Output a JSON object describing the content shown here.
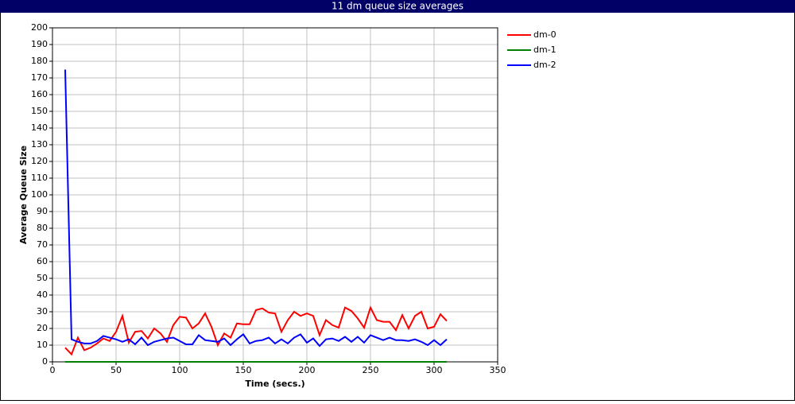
{
  "chart_data": {
    "type": "line",
    "title": "11 dm queue size averages",
    "x_label": "Time (secs.)",
    "y_label": "Average Queue Size",
    "x": [
      10,
      15,
      20,
      25,
      30,
      35,
      40,
      45,
      50,
      55,
      60,
      65,
      70,
      75,
      80,
      85,
      90,
      95,
      100,
      105,
      110,
      115,
      120,
      125,
      130,
      135,
      140,
      145,
      150,
      155,
      160,
      165,
      170,
      175,
      180,
      185,
      190,
      195,
      200,
      205,
      210,
      215,
      220,
      225,
      230,
      235,
      240,
      245,
      250,
      255,
      260,
      265,
      270,
      275,
      280,
      285,
      290,
      295,
      300,
      305,
      310
    ],
    "series": [
      {
        "name": "dm-0",
        "color": "#ff0000",
        "values": [
          8.5,
          4.5,
          14.5,
          7,
          8.5,
          11,
          14,
          12.5,
          18,
          27.5,
          11.5,
          18,
          18.5,
          14,
          20,
          17,
          12,
          22,
          27,
          26.5,
          20,
          23,
          29,
          21,
          10,
          17,
          14.5,
          23,
          22.5,
          22.5,
          31,
          32,
          29.5,
          29,
          18,
          25,
          30,
          27.5,
          29,
          27.5,
          16,
          25,
          22,
          20.5,
          32.5,
          30.5,
          26,
          20.5,
          32.5,
          25,
          24,
          24,
          19,
          28,
          20,
          27.5,
          30,
          20,
          21,
          28.5,
          24.5
        ]
      },
      {
        "name": "dm-1",
        "color": "#008000",
        "values": [
          0,
          0,
          0,
          0,
          0,
          0,
          0,
          0,
          0,
          0,
          0,
          0,
          0,
          0,
          0,
          0,
          0,
          0,
          0,
          0,
          0,
          0,
          0,
          0,
          0,
          0,
          0,
          0,
          0,
          0,
          0,
          0,
          0,
          0,
          0,
          0,
          0,
          0,
          0,
          0,
          0,
          0,
          0,
          0,
          0,
          0,
          0,
          0,
          0,
          0,
          0,
          0,
          0,
          0,
          0,
          0,
          0,
          0,
          0,
          0,
          0
        ]
      },
      {
        "name": "dm-2",
        "color": "#0000ff",
        "values": [
          175,
          13.5,
          12,
          11,
          11,
          12.5,
          15.5,
          14.5,
          13.5,
          12,
          13.5,
          10.5,
          14.5,
          10,
          12,
          13,
          14,
          14.5,
          12.5,
          10.5,
          10.5,
          16,
          13,
          12.5,
          12,
          14,
          10,
          13.5,
          16.5,
          11,
          12.5,
          13,
          14.5,
          11,
          13.5,
          11,
          14.5,
          16.5,
          11.5,
          14,
          9.5,
          13.5,
          14,
          12.5,
          15,
          12,
          15,
          11.5,
          16,
          14.5,
          13,
          14.5,
          13,
          13,
          12.5,
          13.5,
          12,
          10,
          13,
          10,
          13.5
        ]
      }
    ],
    "xlim": [
      0,
      350
    ],
    "xticks": [
      0,
      50,
      100,
      150,
      200,
      250,
      300,
      350
    ],
    "ylim": [
      0,
      200
    ],
    "yticks": [
      0,
      10,
      20,
      30,
      40,
      50,
      60,
      70,
      80,
      90,
      100,
      110,
      120,
      130,
      140,
      150,
      160,
      170,
      180,
      190,
      200
    ],
    "grid": true,
    "legend": "right"
  }
}
